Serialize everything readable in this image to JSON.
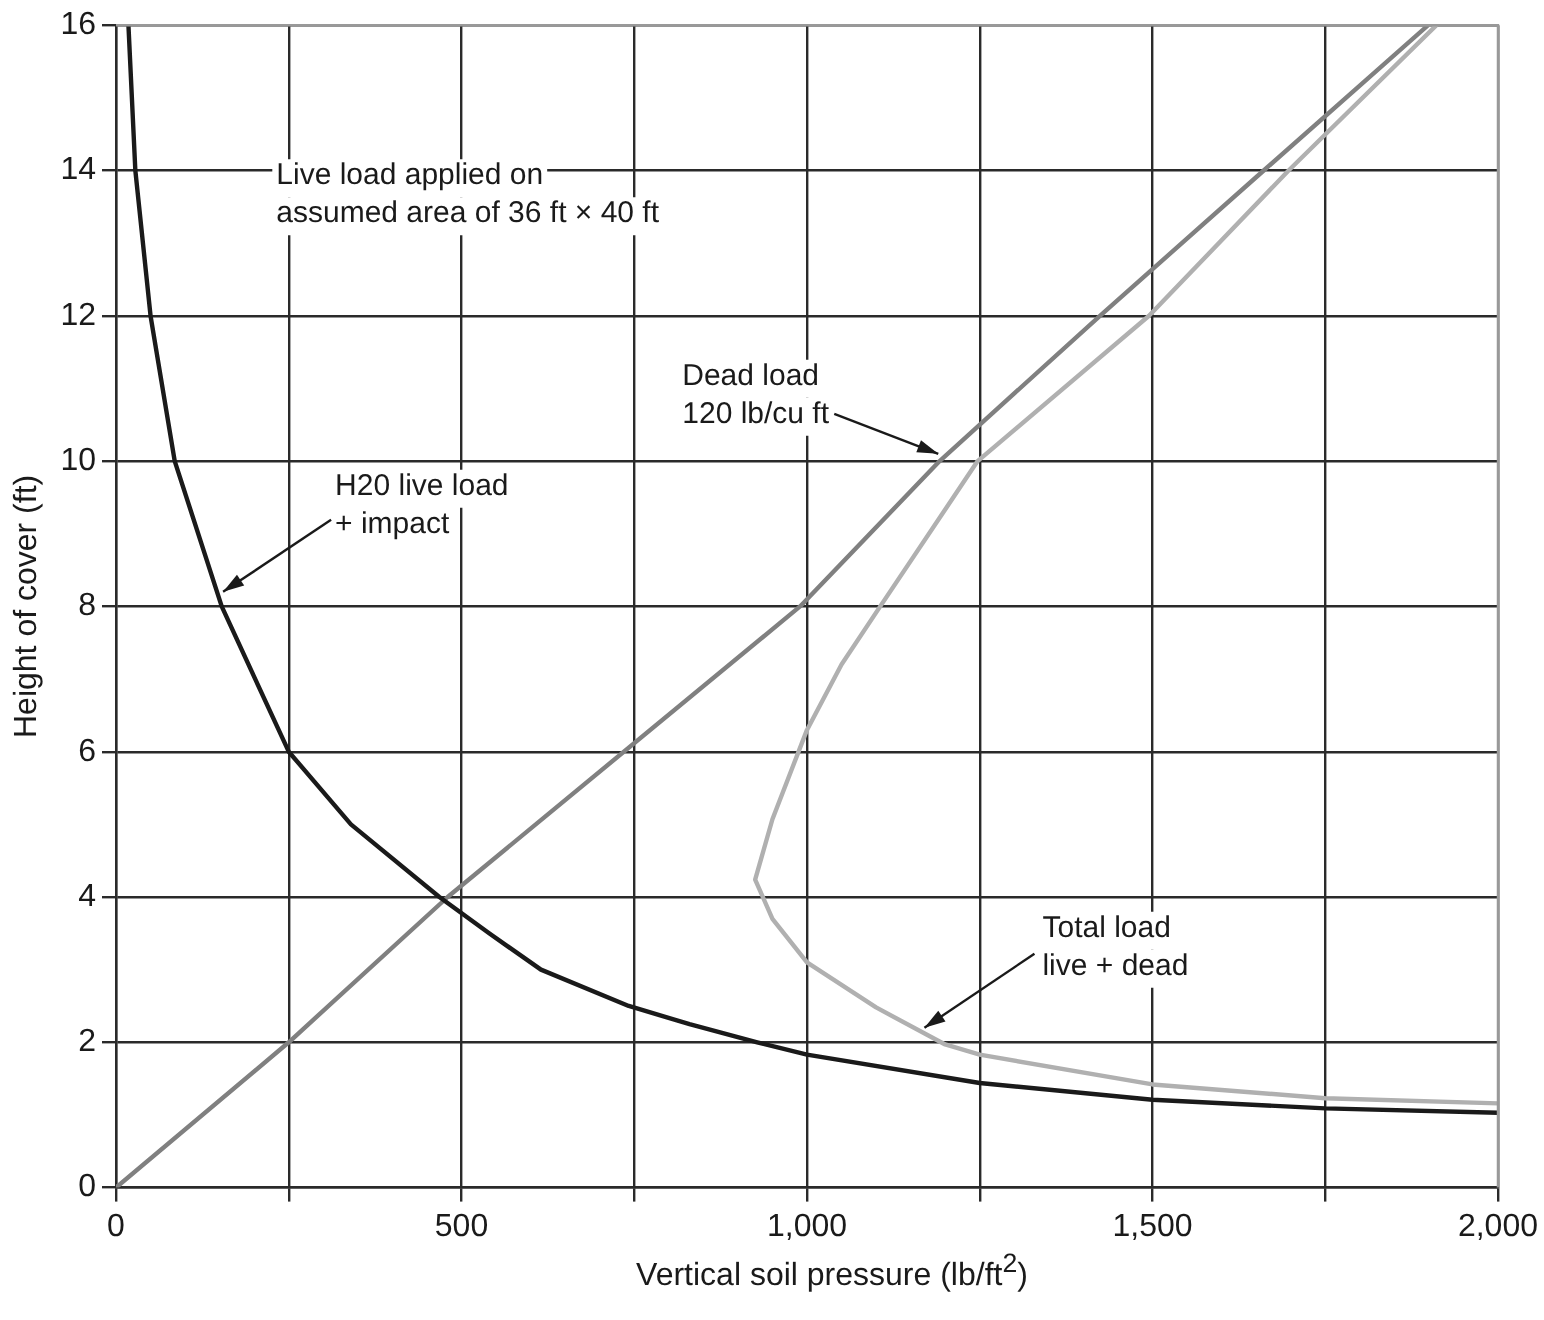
{
  "chart_data": {
    "type": "line",
    "xlabel": "Vertical soil pressure (lb/ft$^{2}$)",
    "ylabel": "Height of cover (ft)",
    "xlim": [
      0,
      2000
    ],
    "xticks": [
      0,
      {
        "value": 250,
        "label": null
      },
      500,
      {
        "value": 750,
        "label": null
      },
      {
        "value": 1000,
        "label": "1,000"
      },
      {
        "value": 1250,
        "label": null
      },
      {
        "value": 1500,
        "label": "1,500"
      },
      {
        "value": 1750,
        "label": null
      },
      {
        "value": 2000,
        "label": "2,000"
      }
    ],
    "ylim": [
      0,
      16
    ],
    "yticks": [
      0,
      2,
      4,
      6,
      8,
      10,
      12,
      14,
      16
    ],
    "grid": true,
    "marker": "none",
    "line_style": "solid",
    "series": [
      {
        "color": "#1a1a1a",
        "x": [
          18,
          28,
          50,
          85,
          153,
          250,
          340,
          468,
          540,
          615,
          742,
          830,
          928,
          1000,
          1250,
          1500,
          1750,
          2000
        ],
        "values": [
          16,
          14,
          12,
          10,
          8,
          6,
          5,
          4,
          3.5,
          3,
          2.5,
          2.25,
          2,
          1.83,
          1.44,
          1.21,
          1.09,
          1.03
        ]
      },
      {
        "color": "#808080",
        "x": [
          0,
          250,
          480,
          990,
          1192,
          1424,
          1661,
          1899
        ],
        "values": [
          0,
          2,
          4,
          8,
          10,
          12,
          14,
          16
        ]
      },
      {
        "color": "#b0b0b0",
        "x": [
          2000,
          1750,
          1500,
          1250,
          1200,
          1100,
          1000,
          950,
          925,
          950,
          1000,
          1050,
          1106,
          1247,
          1495,
          1697,
          1911
        ],
        "values": [
          1.16,
          1.23,
          1.42,
          1.83,
          1.97,
          2.48,
          3.1,
          3.7,
          4.24,
          5.07,
          6.3,
          7.2,
          8,
          10,
          12,
          14,
          16
        ]
      }
    ],
    "annotations": [
      "Live load applied on\nassumed area of 36 ft × 40 ft",
      {
        "text": "H20 live load\n+ impact",
        "x": 155,
        "y": 8.2
      },
      {
        "text": "Dead load\n120 lb/cu ft",
        "x": 1190,
        "y": 10.1
      },
      {
        "text": "Total load\nlive + dead",
        "x": 1170,
        "y": 2.2
      }
    ]
  }
}
